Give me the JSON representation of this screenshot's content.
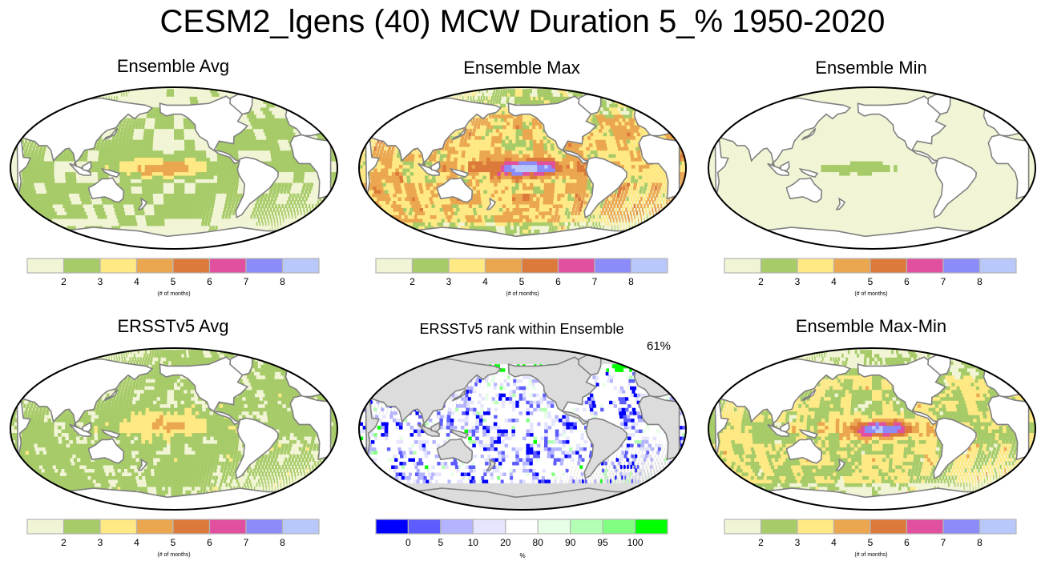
{
  "title": "CESM2_lgens (40) MCW Duration 5_% 1950-2020",
  "colors": {
    "land": "#ffffff",
    "coast": "#808080",
    "grey_land": "#dcdcdc",
    "duration": [
      "#f2f5d5",
      "#a6cb68",
      "#ffe984",
      "#eba74f",
      "#dc7a3b",
      "#e0509f",
      "#8b8cfa",
      "#b9c8fa"
    ],
    "rank": [
      "#0000ff",
      "#5c5cff",
      "#b3b3ff",
      "#e5e5ff",
      "#ffffff",
      "#e6ffe6",
      "#b3ffb3",
      "#80ff80",
      "#00ff00"
    ]
  },
  "panels": [
    {
      "title": "Ensemble Avg",
      "pattern": "avg"
    },
    {
      "title": "Ensemble Max",
      "pattern": "max"
    },
    {
      "title": "Ensemble Min",
      "pattern": "min"
    },
    {
      "title": "ERSSTv5 Avg",
      "pattern": "ersst"
    },
    {
      "title": "ERSSTv5 rank within Ensemble",
      "pattern": "rank",
      "annotation": "61%"
    },
    {
      "title": "Ensemble Max-Min",
      "pattern": "maxmin"
    }
  ],
  "colorbars": {
    "duration": {
      "ticks": [
        "2",
        "3",
        "4",
        "5",
        "6",
        "7",
        "8"
      ],
      "label": "(# of months)"
    },
    "rank": {
      "ticks": [
        "0",
        "5",
        "10",
        "20",
        "80",
        "90",
        "95",
        "100"
      ],
      "label": "%"
    }
  },
  "chart_data": [
    {
      "type": "heatmap",
      "title": "Ensemble Avg",
      "colorbar_levels": [
        2,
        3,
        4,
        5,
        6,
        7,
        8
      ],
      "units": "# of months",
      "value_range": [
        1,
        6
      ]
    },
    {
      "type": "heatmap",
      "title": "Ensemble Max",
      "colorbar_levels": [
        2,
        3,
        4,
        5,
        6,
        7,
        8
      ],
      "units": "# of months",
      "value_range": [
        1,
        9
      ]
    },
    {
      "type": "heatmap",
      "title": "Ensemble Min",
      "colorbar_levels": [
        2,
        3,
        4,
        5,
        6,
        7,
        8
      ],
      "units": "# of months",
      "value_range": [
        1,
        3
      ]
    },
    {
      "type": "heatmap",
      "title": "ERSSTv5 Avg",
      "colorbar_levels": [
        2,
        3,
        4,
        5,
        6,
        7,
        8
      ],
      "units": "# of months",
      "value_range": [
        1,
        6
      ]
    },
    {
      "type": "heatmap",
      "title": "ERSSTv5 rank within Ensemble",
      "colorbar_levels": [
        0,
        5,
        10,
        20,
        80,
        90,
        95,
        100
      ],
      "units": "%",
      "annotation": "61%"
    },
    {
      "type": "heatmap",
      "title": "Ensemble Max-Min",
      "colorbar_levels": [
        2,
        3,
        4,
        5,
        6,
        7,
        8
      ],
      "units": "# of months",
      "value_range": [
        1,
        9
      ]
    }
  ]
}
